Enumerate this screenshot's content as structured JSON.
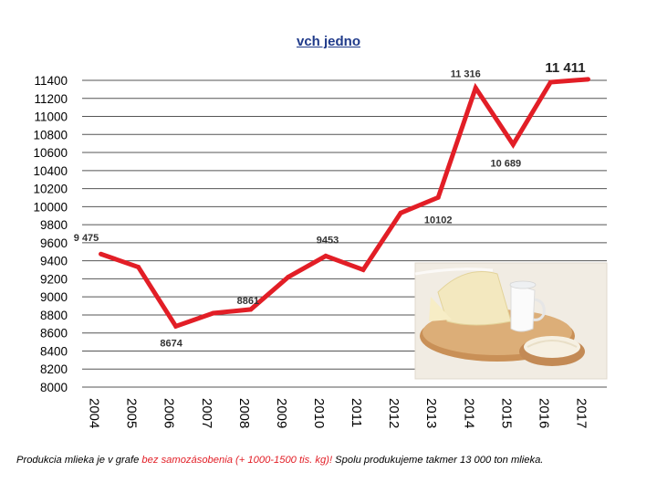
{
  "title": "vch jedno",
  "caption": {
    "part1": "Produkcia mlieka je v grafe ",
    "part2": "bez samozásobenia (+ 1000-1500 tis. kg)!",
    "part3": " Spolu produkujeme takmer 13 000 ton mlieka."
  },
  "colors": {
    "line": "#e21e26",
    "title": "#1f3a8a",
    "highlight": "#e21e26"
  },
  "image": {
    "icon": "dairy-products-photo"
  },
  "chart_data": {
    "type": "line",
    "title": "vch jedno",
    "categories": [
      "2004",
      "2005",
      "2006",
      "2007",
      "2008",
      "2009",
      "2010",
      "2011",
      "2012",
      "2013",
      "2014",
      "2015",
      "2016",
      "2017"
    ],
    "values": [
      9475,
      9330,
      8674,
      8820,
      8861,
      9220,
      9453,
      9300,
      9930,
      10102,
      11316,
      10689,
      11380,
      11411
    ],
    "ylim": [
      8000,
      11400
    ],
    "yticks": [
      8000,
      8200,
      8400,
      8600,
      8800,
      9000,
      9200,
      9400,
      9600,
      9800,
      10000,
      10200,
      10400,
      10600,
      10800,
      11000,
      11200,
      11400
    ],
    "grid": true,
    "labels": [
      {
        "index": 0,
        "text": "9 475",
        "big": false
      },
      {
        "index": 2,
        "text": "8674",
        "big": false
      },
      {
        "index": 4,
        "text": "8861",
        "big": false
      },
      {
        "index": 6,
        "text": "9453",
        "big": false
      },
      {
        "index": 9,
        "text": "10102",
        "big": false
      },
      {
        "index": 10,
        "text": "11 316",
        "big": false
      },
      {
        "index": 11,
        "text": "10 689",
        "big": false
      },
      {
        "index": 13,
        "text": "11 411",
        "big": true
      }
    ]
  }
}
